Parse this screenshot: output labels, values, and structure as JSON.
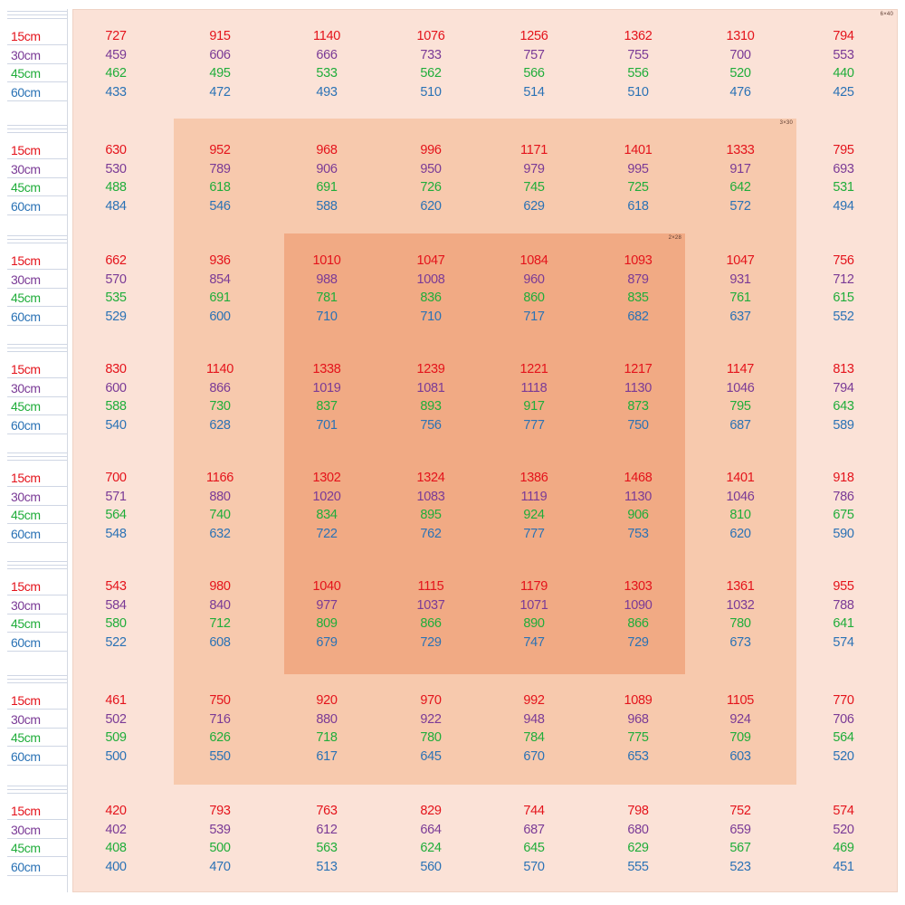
{
  "colors": {
    "15cm": "#e4131b",
    "30cm": "#7a3a96",
    "45cm": "#1fad3a",
    "60cm": "#2a72b5",
    "zone_outer": "#fbe2d7",
    "zone_middle": "#f7c9ad",
    "zone_inner": "#f1aa84"
  },
  "zone_tags": {
    "outer": "6×40",
    "middle": "3×30",
    "inner": "2×28"
  },
  "chart_data": {
    "type": "table",
    "depths": [
      "15cm",
      "30cm",
      "45cm",
      "60cm"
    ],
    "grid": [
      [
        [
          727,
          459,
          462,
          433
        ],
        [
          915,
          606,
          495,
          472
        ],
        [
          1140,
          666,
          533,
          493
        ],
        [
          1076,
          733,
          562,
          510
        ],
        [
          1256,
          757,
          566,
          514
        ],
        [
          1362,
          755,
          556,
          510
        ],
        [
          1310,
          700,
          520,
          476
        ],
        [
          794,
          553,
          440,
          425
        ]
      ],
      [
        [
          630,
          530,
          488,
          484
        ],
        [
          952,
          789,
          618,
          546
        ],
        [
          968,
          906,
          691,
          588
        ],
        [
          996,
          950,
          726,
          620
        ],
        [
          1171,
          979,
          745,
          629
        ],
        [
          1401,
          995,
          725,
          618
        ],
        [
          1333,
          917,
          642,
          572
        ],
        [
          795,
          693,
          531,
          494
        ]
      ],
      [
        [
          662,
          570,
          535,
          529
        ],
        [
          936,
          854,
          691,
          600
        ],
        [
          1010,
          988,
          781,
          710
        ],
        [
          1047,
          1008,
          836,
          710
        ],
        [
          1084,
          960,
          860,
          717
        ],
        [
          1093,
          879,
          835,
          682
        ],
        [
          1047,
          931,
          761,
          637
        ],
        [
          756,
          712,
          615,
          552
        ]
      ],
      [
        [
          830,
          600,
          588,
          540
        ],
        [
          1140,
          866,
          730,
          628
        ],
        [
          1338,
          1019,
          837,
          701
        ],
        [
          1239,
          1081,
          893,
          756
        ],
        [
          1221,
          1118,
          917,
          777
        ],
        [
          1217,
          1130,
          873,
          750
        ],
        [
          1147,
          1046,
          795,
          687
        ],
        [
          813,
          794,
          643,
          589
        ]
      ],
      [
        [
          700,
          571,
          564,
          548
        ],
        [
          1166,
          880,
          740,
          632
        ],
        [
          1302,
          1020,
          834,
          722
        ],
        [
          1324,
          1083,
          895,
          762
        ],
        [
          1386,
          1119,
          924,
          777
        ],
        [
          1468,
          1130,
          906,
          753
        ],
        [
          1401,
          1046,
          810,
          620
        ],
        [
          918,
          786,
          675,
          590
        ]
      ],
      [
        [
          543,
          584,
          580,
          522
        ],
        [
          980,
          840,
          712,
          608
        ],
        [
          1040,
          977,
          809,
          679
        ],
        [
          1115,
          1037,
          866,
          729
        ],
        [
          1179,
          1071,
          890,
          747
        ],
        [
          1303,
          1090,
          866,
          729
        ],
        [
          1361,
          1032,
          780,
          673
        ],
        [
          955,
          788,
          641,
          574
        ]
      ],
      [
        [
          461,
          502,
          509,
          500
        ],
        [
          750,
          716,
          626,
          550
        ],
        [
          920,
          880,
          718,
          617
        ],
        [
          970,
          922,
          780,
          645
        ],
        [
          992,
          948,
          784,
          670
        ],
        [
          1089,
          968,
          775,
          653
        ],
        [
          1105,
          924,
          709,
          603
        ],
        [
          770,
          706,
          564,
          520
        ]
      ],
      [
        [
          420,
          402,
          408,
          400
        ],
        [
          793,
          539,
          500,
          470
        ],
        [
          763,
          612,
          563,
          513
        ],
        [
          829,
          664,
          624,
          560
        ],
        [
          744,
          687,
          645,
          570
        ],
        [
          798,
          680,
          629,
          555
        ],
        [
          752,
          659,
          567,
          523
        ],
        [
          574,
          520,
          469,
          451
        ]
      ]
    ]
  }
}
